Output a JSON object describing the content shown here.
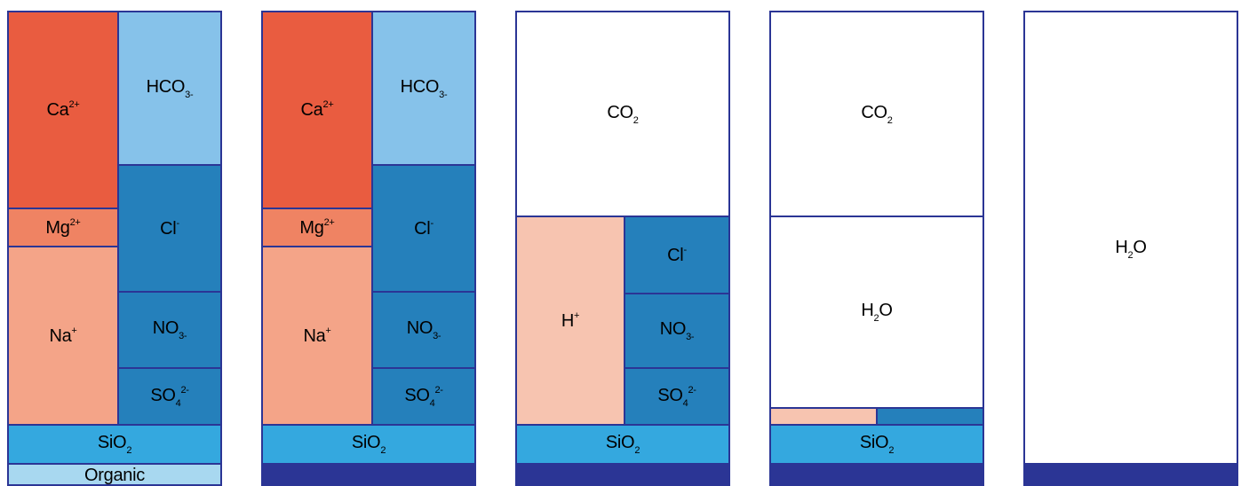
{
  "colors": {
    "border": "#2b3595",
    "calcium": "#e95c40",
    "magnesium": "#ef8363",
    "sodium": "#f4a488",
    "hydrogen": "#f7c4b0",
    "bicarbonate": "#86c2ea",
    "anions": "#2580bb",
    "silica": "#34a8df",
    "organic": "#a8d8f0"
  },
  "labels": {
    "ca": {
      "base": "Ca",
      "sup": "2+"
    },
    "mg": {
      "base": "Mg",
      "sup": "2+"
    },
    "na": {
      "base": "Na",
      "sup": "+"
    },
    "hco3": {
      "base": "HCO",
      "sub": "3-"
    },
    "cl": {
      "base": "Cl",
      "sup": "-"
    },
    "no3": {
      "base": "NO",
      "sub": "3-"
    },
    "so4": {
      "base": "SO",
      "sub": "4",
      "sup": "2-"
    },
    "sio2": {
      "base": "SiO",
      "sub": "2"
    },
    "organic": "Organic",
    "co2": {
      "base": "CO",
      "sub": "2"
    },
    "h2o": {
      "base": "H",
      "sub": "2",
      "tail": "O"
    },
    "hplus": {
      "base": "H",
      "sup": "+"
    }
  }
}
